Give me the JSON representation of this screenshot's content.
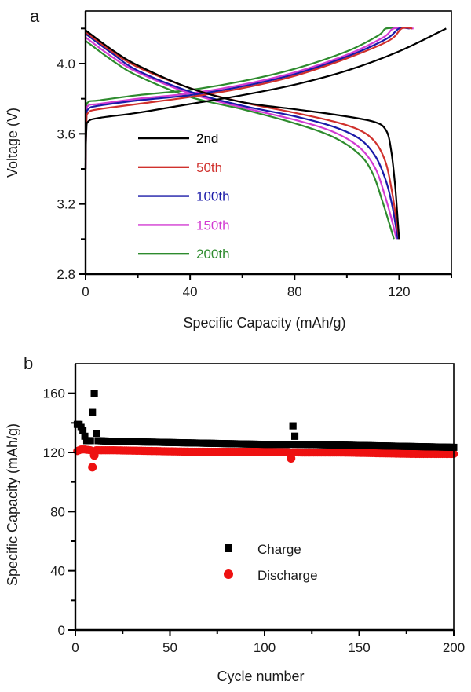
{
  "chart_data": [
    {
      "panel": "a",
      "type": "line",
      "title": "",
      "xlabel": "Specific Capacity (mAh/g)",
      "ylabel": "Voltage (V)",
      "xlim": [
        0,
        140
      ],
      "ylim": [
        2.8,
        4.3
      ],
      "xticks": [
        0,
        40,
        80,
        120
      ],
      "xtick_labels": [
        "0",
        "40",
        "80",
        "120"
      ],
      "xminor_ticks": [
        20,
        60,
        100,
        140
      ],
      "yticks": [
        2.8,
        3.2,
        3.6,
        4.0
      ],
      "ytick_labels": [
        "2.8",
        "3.2",
        "3.6",
        "4.0"
      ],
      "yminor_ticks": [
        3.0,
        3.4,
        3.8,
        4.2
      ],
      "grid": false,
      "legend_position": "lower-left",
      "series": [
        {
          "name": "2nd",
          "color": "#000000",
          "charge": [
            [
              0,
              3.45
            ],
            [
              0.3,
              3.62
            ],
            [
              1,
              3.67
            ],
            [
              5,
              3.69
            ],
            [
              20,
              3.72
            ],
            [
              40,
              3.77
            ],
            [
              60,
              3.82
            ],
            [
              80,
              3.88
            ],
            [
              100,
              3.96
            ],
            [
              120,
              4.07
            ],
            [
              138,
              4.2
            ]
          ],
          "discharge": [
            [
              0,
              4.19
            ],
            [
              10,
              4.08
            ],
            [
              20,
              3.99
            ],
            [
              40,
              3.86
            ],
            [
              60,
              3.78
            ],
            [
              80,
              3.74
            ],
            [
              95,
              3.71
            ],
            [
              110,
              3.67
            ],
            [
              115,
              3.62
            ],
            [
              117,
              3.5
            ],
            [
              118.5,
              3.3
            ],
            [
              119.5,
              3.1
            ],
            [
              120,
              3.0
            ]
          ]
        },
        {
          "name": "50th",
          "color": "#d0312d",
          "charge": [
            [
              0,
              3.4
            ],
            [
              0.3,
              3.66
            ],
            [
              1,
              3.72
            ],
            [
              5,
              3.74
            ],
            [
              20,
              3.77
            ],
            [
              40,
              3.81
            ],
            [
              60,
              3.86
            ],
            [
              80,
              3.93
            ],
            [
              100,
              4.03
            ],
            [
              116,
              4.13
            ],
            [
              121,
              4.2
            ],
            [
              125,
              4.2
            ]
          ],
          "discharge": [
            [
              0,
              4.18
            ],
            [
              10,
              4.07
            ],
            [
              20,
              3.98
            ],
            [
              40,
              3.86
            ],
            [
              60,
              3.78
            ],
            [
              80,
              3.72
            ],
            [
              95,
              3.67
            ],
            [
              105,
              3.62
            ],
            [
              111,
              3.55
            ],
            [
              115,
              3.43
            ],
            [
              117.5,
              3.25
            ],
            [
              119,
              3.1
            ],
            [
              120,
              3.0
            ]
          ]
        },
        {
          "name": "100th",
          "color": "#1a1aa8",
          "charge": [
            [
              0,
              3.4
            ],
            [
              0.3,
              3.68
            ],
            [
              1,
              3.74
            ],
            [
              5,
              3.76
            ],
            [
              20,
              3.79
            ],
            [
              40,
              3.82
            ],
            [
              60,
              3.87
            ],
            [
              80,
              3.94
            ],
            [
              100,
              4.04
            ],
            [
              115,
              4.14
            ],
            [
              120,
              4.2
            ],
            [
              124,
              4.2
            ]
          ],
          "discharge": [
            [
              0,
              4.17
            ],
            [
              10,
              4.06
            ],
            [
              20,
              3.96
            ],
            [
              40,
              3.84
            ],
            [
              60,
              3.76
            ],
            [
              80,
              3.7
            ],
            [
              95,
              3.64
            ],
            [
              105,
              3.57
            ],
            [
              111,
              3.47
            ],
            [
              115,
              3.33
            ],
            [
              117.5,
              3.18
            ],
            [
              119.5,
              3.0
            ]
          ]
        },
        {
          "name": "150th",
          "color": "#d23ad2",
          "charge": [
            [
              0,
              3.4
            ],
            [
              0.3,
              3.7
            ],
            [
              1,
              3.76
            ],
            [
              5,
              3.77
            ],
            [
              20,
              3.8
            ],
            [
              40,
              3.83
            ],
            [
              60,
              3.88
            ],
            [
              80,
              3.95
            ],
            [
              100,
              4.05
            ],
            [
              114,
              4.15
            ],
            [
              118,
              4.2
            ],
            [
              125.5,
              4.2
            ]
          ],
          "discharge": [
            [
              0,
              4.15
            ],
            [
              10,
              4.04
            ],
            [
              20,
              3.95
            ],
            [
              40,
              3.83
            ],
            [
              60,
              3.75
            ],
            [
              80,
              3.68
            ],
            [
              95,
              3.61
            ],
            [
              105,
              3.52
            ],
            [
              111,
              3.4
            ],
            [
              114.5,
              3.25
            ],
            [
              117,
              3.12
            ],
            [
              119,
              3.0
            ]
          ]
        },
        {
          "name": "200th",
          "color": "#2e8b2e",
          "charge": [
            [
              0,
              3.4
            ],
            [
              0.3,
              3.72
            ],
            [
              1,
              3.78
            ],
            [
              5,
              3.79
            ],
            [
              20,
              3.82
            ],
            [
              40,
              3.85
            ],
            [
              60,
              3.9
            ],
            [
              80,
              3.97
            ],
            [
              100,
              4.07
            ],
            [
              112,
              4.16
            ],
            [
              115,
              4.2
            ],
            [
              121,
              4.2
            ]
          ],
          "discharge": [
            [
              0,
              4.13
            ],
            [
              10,
              4.02
            ],
            [
              20,
              3.93
            ],
            [
              40,
              3.81
            ],
            [
              60,
              3.74
            ],
            [
              80,
              3.66
            ],
            [
              95,
              3.58
            ],
            [
              105,
              3.48
            ],
            [
              110,
              3.37
            ],
            [
              113.5,
              3.22
            ],
            [
              116,
              3.1
            ],
            [
              118,
              3.0
            ]
          ]
        }
      ]
    },
    {
      "panel": "b",
      "type": "scatter",
      "title": "",
      "xlabel": "Cycle number",
      "ylabel": "Specific Capacity (mAh/g)",
      "xlim": [
        0,
        200
      ],
      "ylim": [
        0,
        180
      ],
      "xticks": [
        0,
        50,
        100,
        150,
        200
      ],
      "xtick_labels": [
        "0",
        "50",
        "100",
        "150",
        "200"
      ],
      "xminor_ticks": [
        25,
        75,
        125,
        175
      ],
      "yticks": [
        0,
        40,
        80,
        120,
        160
      ],
      "ytick_labels": [
        "0",
        "40",
        "80",
        "120",
        "160"
      ],
      "yminor_ticks": [
        20,
        60,
        100,
        140
      ],
      "grid": false,
      "legend_position": "center",
      "series": [
        {
          "name": "Charge",
          "marker": "square",
          "color": "#000000",
          "trend": [
            [
              1,
              139
            ],
            [
              2,
              139
            ],
            [
              3,
              137
            ],
            [
              4,
              135
            ],
            [
              5,
              131
            ],
            [
              6,
              128
            ],
            [
              7,
              128
            ],
            [
              8,
              128
            ],
            [
              12,
              128
            ],
            [
              20,
              127.5
            ],
            [
              40,
              127
            ],
            [
              60,
              126.5
            ],
            [
              80,
              126
            ],
            [
              100,
              125.5
            ],
            [
              120,
              125.5
            ],
            [
              140,
              125
            ],
            [
              160,
              124.5
            ],
            [
              180,
              124
            ],
            [
              200,
              123.5
            ]
          ],
          "outliers": [
            [
              9,
              147
            ],
            [
              10,
              160
            ],
            [
              11,
              133
            ],
            [
              115,
              138
            ],
            [
              116,
              131
            ]
          ]
        },
        {
          "name": "Discharge",
          "marker": "circle",
          "color": "#ee1111",
          "trend": [
            [
              1,
              121
            ],
            [
              2,
              121.5
            ],
            [
              3,
              122
            ],
            [
              5,
              122
            ],
            [
              8,
              121.5
            ],
            [
              12,
              121.5
            ],
            [
              20,
              121.5
            ],
            [
              40,
              121
            ],
            [
              60,
              120.5
            ],
            [
              80,
              120.5
            ],
            [
              100,
              120.5
            ],
            [
              120,
              120
            ],
            [
              140,
              120
            ],
            [
              160,
              119.5
            ],
            [
              180,
              119
            ],
            [
              200,
              119
            ]
          ],
          "outliers": [
            [
              9,
              110
            ],
            [
              10,
              118
            ],
            [
              114,
              116
            ]
          ]
        }
      ]
    }
  ],
  "panel_labels": [
    "a",
    "b"
  ]
}
